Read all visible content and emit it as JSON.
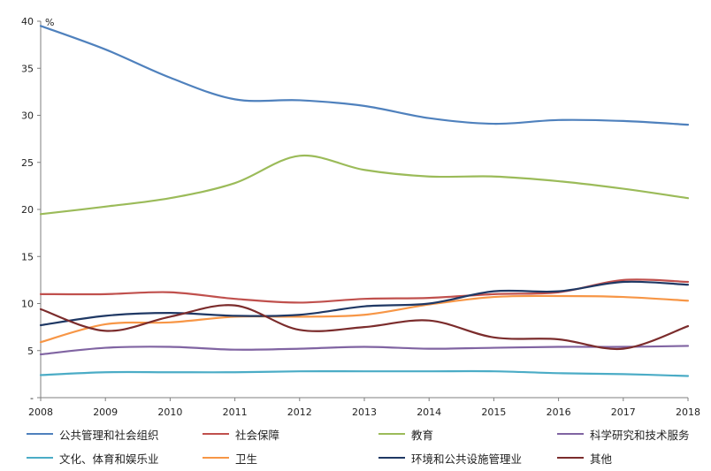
{
  "chart_data": {
    "type": "line",
    "unit": "%",
    "x": [
      "2008",
      "2009",
      "2010",
      "2011",
      "2012",
      "2013",
      "2014",
      "2015",
      "2016",
      "2017",
      "2018"
    ],
    "yticks": [
      "-",
      "5",
      "10",
      "15",
      "20",
      "25",
      "30",
      "35",
      "40"
    ],
    "ylim": [
      0,
      40
    ],
    "grid": false,
    "legend_position": "bottom",
    "series": [
      {
        "name": "公共管理和社会组织",
        "color": "#4F81BD",
        "values": [
          39.5,
          37.0,
          34.0,
          31.7,
          31.6,
          31.0,
          29.7,
          29.1,
          29.5,
          29.4,
          29.0
        ]
      },
      {
        "name": "社会保障",
        "color": "#C0504D",
        "values": [
          11.0,
          11.0,
          11.2,
          10.5,
          10.1,
          10.5,
          10.6,
          11.0,
          11.2,
          12.5,
          12.3
        ]
      },
      {
        "name": "教育",
        "color": "#9BBB59",
        "values": [
          19.5,
          20.3,
          21.2,
          22.8,
          25.7,
          24.2,
          23.5,
          23.5,
          23.0,
          22.2,
          21.2
        ]
      },
      {
        "name": "科学研究和技术服务",
        "color": "#8064A2",
        "values": [
          4.6,
          5.3,
          5.4,
          5.1,
          5.2,
          5.4,
          5.2,
          5.3,
          5.4,
          5.4,
          5.5
        ]
      },
      {
        "name": "文化、体育和娱乐业",
        "color": "#4BACC6",
        "values": [
          2.4,
          2.7,
          2.7,
          2.7,
          2.8,
          2.8,
          2.8,
          2.8,
          2.6,
          2.5,
          2.3
        ]
      },
      {
        "name": "卫生",
        "color": "#F79646",
        "values": [
          5.9,
          7.8,
          8.0,
          8.6,
          8.6,
          8.8,
          9.9,
          10.7,
          10.8,
          10.7,
          10.3
        ]
      },
      {
        "name": "环境和公共设施管理业",
        "color": "#1F3864",
        "values": [
          7.7,
          8.7,
          9.0,
          8.7,
          8.8,
          9.7,
          10.0,
          11.3,
          11.3,
          12.3,
          12.0
        ]
      },
      {
        "name": "其他",
        "color": "#7B2C2C",
        "values": [
          9.4,
          7.1,
          8.6,
          9.8,
          7.2,
          7.5,
          8.2,
          6.4,
          6.2,
          5.2,
          7.6
        ]
      }
    ]
  }
}
